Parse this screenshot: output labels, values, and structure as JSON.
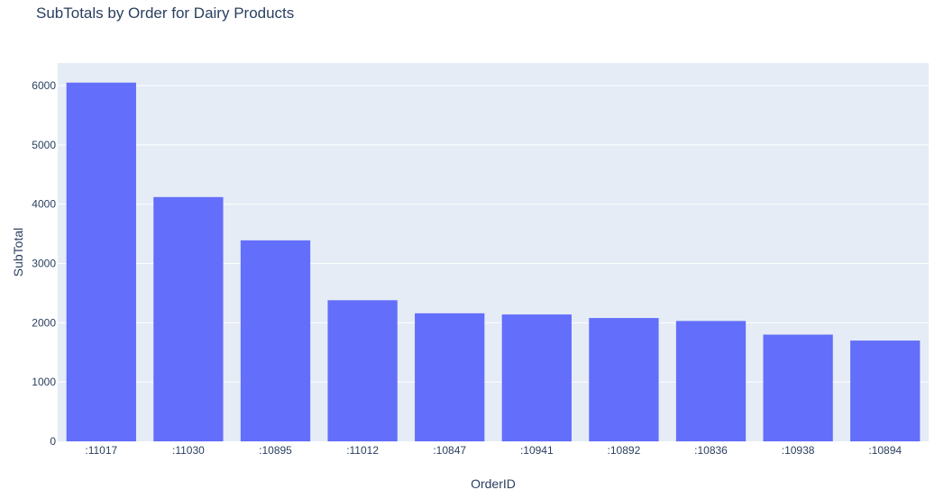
{
  "chart_data": {
    "type": "bar",
    "title": "SubTotals by Order for Dairy Products",
    "xlabel": "OrderID",
    "ylabel": "SubTotal",
    "categories": [
      ":11017",
      ":11030",
      ":10895",
      ":11012",
      ":10847",
      ":10941",
      ":10892",
      ":10836",
      ":10938",
      ":10894"
    ],
    "values": [
      6050,
      4120,
      3390,
      2380,
      2160,
      2140,
      2080,
      2030,
      1800,
      1700
    ],
    "ylim": [
      0,
      6380
    ],
    "yticks": [
      0,
      1000,
      2000,
      3000,
      4000,
      5000,
      6000
    ],
    "grid": true,
    "colors": {
      "bar": "#636efa",
      "plot_background": "#e5ecf6",
      "gridline": "#ffffff",
      "text": "#2a3f5f"
    }
  }
}
